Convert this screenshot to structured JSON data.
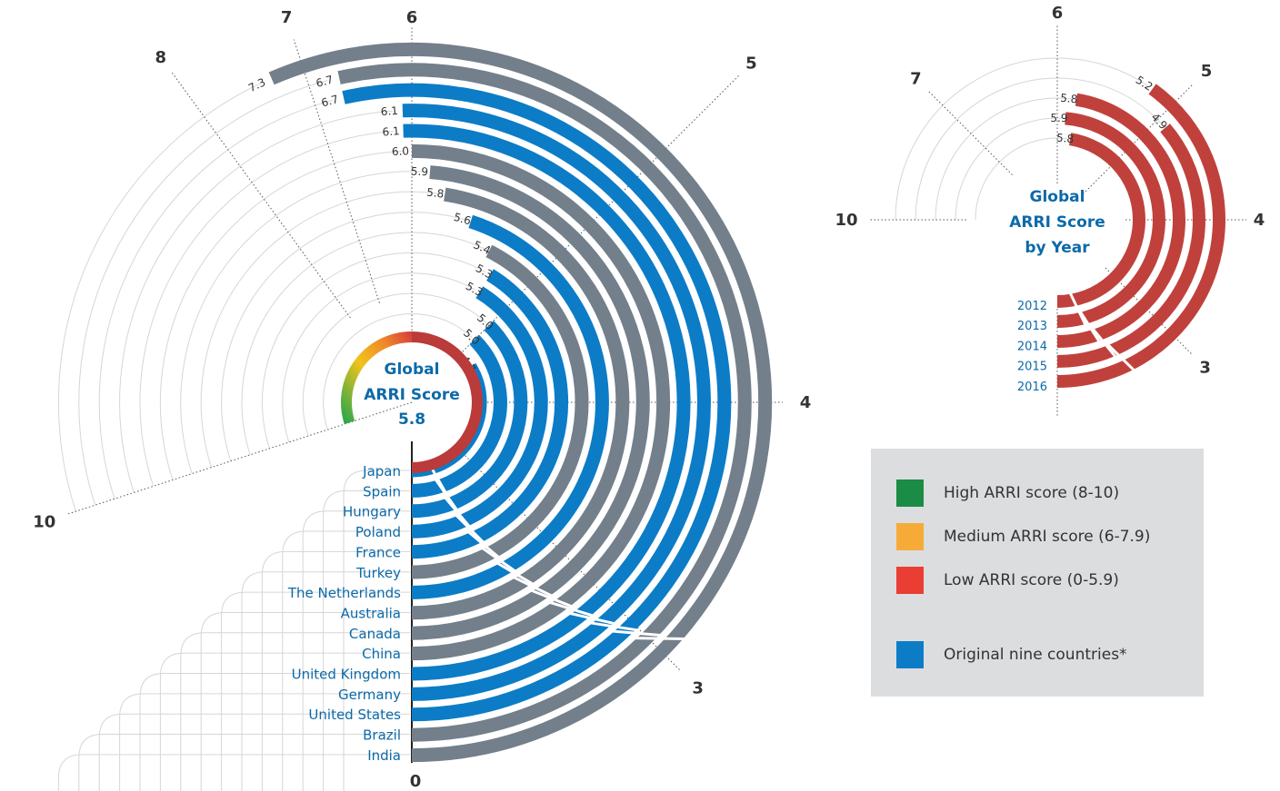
{
  "chart_data": [
    {
      "type": "radial-bar",
      "title": "",
      "center_label_lines": [
        "Global",
        "ARRI Score"
      ],
      "center_value": "5.8",
      "axis_ticks": [
        "0",
        "3",
        "4",
        "5",
        "6",
        "7",
        "8",
        "10"
      ],
      "countries": [
        {
          "name": "Japan",
          "score": 4.7,
          "original_nine": true
        },
        {
          "name": "Spain",
          "score": 5.0,
          "original_nine": true
        },
        {
          "name": "Hungary",
          "score": 5.0,
          "original_nine": true
        },
        {
          "name": "Poland",
          "score": 5.3,
          "original_nine": true
        },
        {
          "name": "France",
          "score": 5.3,
          "original_nine": true
        },
        {
          "name": "Turkey",
          "score": 5.4,
          "original_nine": false
        },
        {
          "name": "The Netherlands",
          "score": 5.6,
          "original_nine": true
        },
        {
          "name": "Australia",
          "score": 5.8,
          "original_nine": false
        },
        {
          "name": "Canada",
          "score": 5.9,
          "original_nine": false
        },
        {
          "name": "China",
          "score": 6.0,
          "original_nine": false
        },
        {
          "name": "United Kingdom",
          "score": 6.1,
          "original_nine": true
        },
        {
          "name": "Germany",
          "score": 6.1,
          "original_nine": true
        },
        {
          "name": "United States",
          "score": 6.7,
          "original_nine": true
        },
        {
          "name": "Brazil",
          "score": 6.7,
          "original_nine": false
        },
        {
          "name": "India",
          "score": 7.3,
          "original_nine": false
        }
      ]
    },
    {
      "type": "radial-bar",
      "title": "",
      "center_label_lines": [
        "Global",
        "ARRI Score",
        "by Year"
      ],
      "axis_ticks": [
        "3",
        "4",
        "5",
        "6",
        "7",
        "10"
      ],
      "years": [
        {
          "year": "2012",
          "score": 5.2
        },
        {
          "year": "2013",
          "score": 4.9
        },
        {
          "year": "2014",
          "score": 5.8
        },
        {
          "year": "2015",
          "score": 5.9
        },
        {
          "year": "2016",
          "score": 5.8
        }
      ]
    }
  ],
  "legend": {
    "items": [
      {
        "label": "High ARRI score (8-10)",
        "color": "#1a8c45"
      },
      {
        "label": "Medium ARRI score (6-7.9)",
        "color": "#f6ab39"
      },
      {
        "label": "Low ARRI score (0-5.9)",
        "color": "#ea3d33"
      },
      {
        "label": "Original nine countries*",
        "color": "#0c7cc7"
      }
    ]
  },
  "colors": {
    "original": "#0c7cc7",
    "other": "#737f8a",
    "year": "#c0413c",
    "label_text": "#0c6aa9",
    "tick_text": "#333333",
    "center_text": "#0c6aa9"
  }
}
